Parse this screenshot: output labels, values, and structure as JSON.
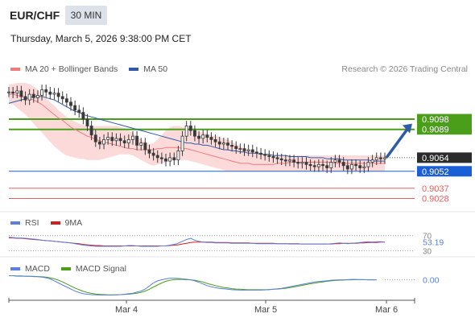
{
  "header": {
    "symbol": "EUR/CHF",
    "timeframe": "30 MIN",
    "timestamp": "Thursday, March 5, 2026 9:38:00 PM CET"
  },
  "legend": {
    "ma20_label": "MA 20 + Bollinger Bands",
    "ma50_label": "MA 50",
    "copyright": "Research © 2026 Trading Central",
    "rsi_label": "RSI",
    "rsi_ma_label": "9MA",
    "macd_label": "MACD",
    "macd_signal_label": "MACD Signal"
  },
  "colors": {
    "ma20": "#f07b7b",
    "ma50": "#2e5aa8",
    "bollinger_fill": "#fbd3d3",
    "resistance": "#4a9e1a",
    "pivot": "#1a5fd6",
    "support": "#e06060",
    "price_box": "#2b2b2b",
    "rsi": "#5b7fe0",
    "rsi_ma": "#d21e1e",
    "macd": "#5b7fe0",
    "macd_signal": "#4a9e1a",
    "arrow": "#2e5aa8"
  },
  "chart_data": [
    {
      "type": "candlestick",
      "title": "",
      "x_ticks": [
        "Mar 4",
        "Mar 5",
        "Mar 6"
      ],
      "ylim": [
        0.9017,
        0.9135
      ],
      "last_price": "0.9064",
      "levels": [
        {
          "value": "0.9098",
          "kind": "resistance"
        },
        {
          "value": "0.9089",
          "kind": "resistance"
        },
        {
          "value": "0.9052",
          "kind": "pivot"
        },
        {
          "value": "0.9037",
          "kind": "support"
        },
        {
          "value": "0.9028",
          "kind": "support"
        }
      ],
      "close": [
        0.9122,
        0.9121,
        0.9123,
        0.9118,
        0.9115,
        0.912,
        0.9117,
        0.9119,
        0.9124,
        0.9122,
        0.912,
        0.9121,
        0.9118,
        0.9116,
        0.9113,
        0.911,
        0.9106,
        0.9104,
        0.9098,
        0.9092,
        0.9084,
        0.9078,
        0.9076,
        0.908,
        0.9082,
        0.9079,
        0.9081,
        0.9079,
        0.9077,
        0.908,
        0.9083,
        0.9075,
        0.9077,
        0.9071,
        0.9068,
        0.9066,
        0.9064,
        0.9063,
        0.9061,
        0.9064,
        0.9062,
        0.907,
        0.9083,
        0.9092,
        0.9088,
        0.9083,
        0.9081,
        0.9084,
        0.9082,
        0.908,
        0.9078,
        0.9076,
        0.9077,
        0.9075,
        0.9074,
        0.9072,
        0.9072,
        0.907,
        0.9071,
        0.9069,
        0.9068,
        0.9067,
        0.9066,
        0.9065,
        0.9064,
        0.9063,
        0.9062,
        0.9061,
        0.9062,
        0.906,
        0.9059,
        0.906,
        0.9058,
        0.9057,
        0.9056,
        0.9058,
        0.9057,
        0.9055,
        0.906,
        0.9062,
        0.906,
        0.9057,
        0.9054,
        0.9058,
        0.9057,
        0.9055,
        0.9056,
        0.906,
        0.9062,
        0.9064,
        0.9063,
        0.9064
      ],
      "ma20": [
        0.912,
        0.912,
        0.9119,
        0.9118,
        0.9117,
        0.9116,
        0.9115,
        0.9113,
        0.9111,
        0.9108,
        0.9105,
        0.9102,
        0.9099,
        0.9097,
        0.9094,
        0.9091,
        0.9089,
        0.9087,
        0.9085,
        0.9083,
        0.9082,
        0.908,
        0.9079,
        0.9078,
        0.9077,
        0.9076,
        0.9075,
        0.9074,
        0.9073,
        0.9072,
        0.9072,
        0.9071,
        0.9071,
        0.9071,
        0.9071,
        0.9071,
        0.9072,
        0.9072,
        0.9073,
        0.9073,
        0.9073,
        0.9073,
        0.9072,
        0.9072,
        0.9071,
        0.907,
        0.9069,
        0.9068,
        0.9067,
        0.9066,
        0.9065,
        0.9064,
        0.9063,
        0.9062,
        0.9061,
        0.906,
        0.9059,
        0.9059,
        0.9059,
        0.9058,
        0.9058,
        0.9058,
        0.9058,
        0.9058,
        0.9058,
        0.9059,
        0.9059,
        0.9059,
        0.906,
        0.906,
        0.906,
        0.906,
        0.906,
        0.906,
        0.906,
        0.906,
        0.906,
        0.906,
        0.906,
        0.9059,
        0.9059,
        0.9059,
        0.9059,
        0.9059,
        0.9059,
        0.9059,
        0.9059,
        0.9059,
        0.9059,
        0.9059,
        0.9059,
        0.9059
      ],
      "bb_upper": [
        0.9129,
        0.9129,
        0.913,
        0.913,
        0.913,
        0.9129,
        0.9127,
        0.9124,
        0.9121,
        0.9117,
        0.9113,
        0.911,
        0.9106,
        0.9103,
        0.91,
        0.9098,
        0.9096,
        0.9094,
        0.9093,
        0.9092,
        0.9092,
        0.9092,
        0.9092,
        0.9092,
        0.9092,
        0.9092,
        0.9092,
        0.9091,
        0.909,
        0.9088,
        0.9086,
        0.9083,
        0.908,
        0.9078,
        0.9076,
        0.9077,
        0.908,
        0.9084,
        0.9088,
        0.9091,
        0.9092,
        0.9092,
        0.9091,
        0.909,
        0.9089,
        0.9088,
        0.9087,
        0.9086,
        0.9085,
        0.9084,
        0.9083,
        0.9082,
        0.9081,
        0.908,
        0.9078,
        0.9076,
        0.9074,
        0.9072,
        0.9071,
        0.907,
        0.9069,
        0.9068,
        0.9067,
        0.9066,
        0.9066,
        0.9066,
        0.9066,
        0.9066,
        0.9066,
        0.9066,
        0.9066,
        0.9066,
        0.9066,
        0.9066,
        0.9066,
        0.9066,
        0.9066,
        0.9066,
        0.9066,
        0.9066,
        0.9066,
        0.9066,
        0.9066,
        0.9066,
        0.9066,
        0.9066,
        0.9066,
        0.9066,
        0.9066,
        0.9066,
        0.9066,
        0.9066
      ],
      "bb_lower": [
        0.9112,
        0.9111,
        0.9108,
        0.9105,
        0.9102,
        0.9098,
        0.9094,
        0.909,
        0.9086,
        0.9082,
        0.9078,
        0.9074,
        0.9071,
        0.9068,
        0.9066,
        0.9065,
        0.9064,
        0.9063,
        0.9063,
        0.9062,
        0.9062,
        0.9062,
        0.9062,
        0.9063,
        0.9064,
        0.9065,
        0.9066,
        0.9067,
        0.9067,
        0.9067,
        0.9066,
        0.9064,
        0.9062,
        0.906,
        0.9058,
        0.9057,
        0.9058,
        0.9059,
        0.906,
        0.9061,
        0.9062,
        0.9062,
        0.9062,
        0.9062,
        0.9061,
        0.906,
        0.9059,
        0.9058,
        0.9057,
        0.9056,
        0.9055,
        0.9054,
        0.9053,
        0.9052,
        0.9052,
        0.9052,
        0.9052,
        0.9052,
        0.9052,
        0.9052,
        0.9052,
        0.9052,
        0.9052,
        0.9052,
        0.9052,
        0.9052,
        0.9052,
        0.9052,
        0.9052,
        0.9052,
        0.9052,
        0.9052,
        0.9052,
        0.9052,
        0.9052,
        0.9052,
        0.9052,
        0.9052,
        0.9052,
        0.9052,
        0.9052,
        0.9052,
        0.9052,
        0.9052,
        0.9052,
        0.9052,
        0.9052,
        0.9052,
        0.9052,
        0.9052,
        0.9052,
        0.9052
      ],
      "ma50": [
        0.9112,
        0.9113,
        0.9114,
        0.9115,
        0.9116,
        0.9117,
        0.9118,
        0.9118,
        0.9118,
        0.9117,
        0.9116,
        0.9115,
        0.9113,
        0.9111,
        0.9109,
        0.9107,
        0.9105,
        0.9104,
        0.9102,
        0.9101,
        0.91,
        0.9099,
        0.9098,
        0.9097,
        0.9096,
        0.9095,
        0.9094,
        0.9093,
        0.9092,
        0.9091,
        0.909,
        0.9089,
        0.9088,
        0.9087,
        0.9086,
        0.9085,
        0.9084,
        0.9083,
        0.9082,
        0.9081,
        0.908,
        0.9079,
        0.9078,
        0.9077,
        0.9077,
        0.9076,
        0.9076,
        0.9075,
        0.9075,
        0.9074,
        0.9073,
        0.9072,
        0.9071,
        0.9071,
        0.907,
        0.907,
        0.9069,
        0.9069,
        0.9068,
        0.9068,
        0.9068,
        0.9067,
        0.9067,
        0.9067,
        0.9066,
        0.9066,
        0.9066,
        0.9066,
        0.9065,
        0.9065,
        0.9065,
        0.9065,
        0.9065,
        0.9064,
        0.9064,
        0.9064,
        0.9064,
        0.9063,
        0.9063,
        0.9063,
        0.9063,
        0.9062,
        0.9062,
        0.9062,
        0.9062,
        0.9062,
        0.9062,
        0.9062,
        0.9061,
        0.9061,
        0.9061,
        0.9061
      ]
    },
    {
      "type": "line",
      "title": "",
      "ylim": [
        25,
        80
      ],
      "levels": [
        "70",
        "30"
      ],
      "last_value": "53.19",
      "series": [
        {
          "name": "RSI",
          "values": [
            66,
            65,
            64,
            64,
            63,
            62,
            61,
            60,
            58,
            57,
            56,
            55,
            54,
            53,
            52,
            51,
            49,
            47,
            45,
            44,
            43,
            42,
            42,
            42,
            42,
            42,
            42,
            42,
            43,
            44,
            44,
            43,
            42,
            42,
            42,
            42,
            42,
            43,
            43,
            45,
            47,
            50,
            55,
            60,
            63,
            58,
            55,
            53,
            52,
            52,
            51,
            51,
            51,
            51,
            50,
            50,
            50,
            50,
            50,
            50,
            49,
            49,
            49,
            49,
            49,
            49,
            49,
            49,
            48,
            48,
            48,
            48,
            48,
            48,
            48,
            48,
            48,
            48,
            49,
            50,
            51,
            50,
            49,
            50,
            51,
            52,
            53,
            54,
            53,
            54,
            54,
            53
          ]
        },
        {
          "name": "9MA",
          "values": [
            64,
            64,
            63,
            63,
            62,
            61,
            60,
            59,
            58,
            57,
            56,
            55,
            54,
            53,
            52,
            51,
            50,
            49,
            47,
            46,
            45,
            44,
            44,
            43,
            43,
            43,
            43,
            43,
            43,
            43,
            43,
            43,
            43,
            43,
            43,
            43,
            43,
            43,
            43,
            44,
            45,
            46,
            48,
            50,
            52,
            53,
            53,
            53,
            53,
            53,
            52,
            52,
            52,
            52,
            51,
            51,
            51,
            51,
            51,
            50,
            50,
            50,
            50,
            50,
            50,
            49,
            49,
            49,
            49,
            49,
            49,
            48,
            48,
            48,
            48,
            48,
            48,
            48,
            48,
            49,
            49,
            50,
            50,
            50,
            50,
            51,
            51,
            52,
            52,
            52,
            53,
            53
          ]
        }
      ]
    },
    {
      "type": "line",
      "title": "",
      "last_value": "0.00",
      "series": [
        {
          "name": "MACD",
          "values": [
            0.2,
            0.2,
            0.18,
            0.18,
            0.17,
            0.17,
            0.16,
            0.15,
            0.13,
            0.1,
            0.05,
            -0.05,
            -0.15,
            -0.25,
            -0.35,
            -0.45,
            -0.55,
            -0.62,
            -0.68,
            -0.7,
            -0.72,
            -0.73,
            -0.74,
            -0.74,
            -0.74,
            -0.74,
            -0.73,
            -0.72,
            -0.7,
            -0.68,
            -0.65,
            -0.6,
            -0.55,
            -0.45,
            -0.3,
            -0.15,
            -0.05,
            0.0,
            0.05,
            0.08,
            0.08,
            0.07,
            0.05,
            0.03,
            0.0,
            -0.05,
            -0.12,
            -0.2,
            -0.28,
            -0.34,
            -0.38,
            -0.42,
            -0.44,
            -0.46,
            -0.48,
            -0.49,
            -0.5,
            -0.5,
            -0.5,
            -0.5,
            -0.5,
            -0.5,
            -0.49,
            -0.48,
            -0.46,
            -0.44,
            -0.42,
            -0.38,
            -0.34,
            -0.3,
            -0.26,
            -0.22,
            -0.18,
            -0.14,
            -0.1,
            -0.08,
            -0.06,
            -0.04,
            -0.02,
            -0.01,
            0.0,
            0.0,
            0.01,
            0.02,
            0.02,
            0.01,
            0.01,
            0.0,
            0.0,
            0.0
          ]
        },
        {
          "name": "MACD Signal",
          "values": [
            0.2,
            0.2,
            0.19,
            0.19,
            0.18,
            0.17,
            0.17,
            0.16,
            0.15,
            0.13,
            0.1,
            0.05,
            -0.02,
            -0.1,
            -0.2,
            -0.3,
            -0.4,
            -0.48,
            -0.56,
            -0.62,
            -0.66,
            -0.69,
            -0.71,
            -0.72,
            -0.73,
            -0.73,
            -0.73,
            -0.72,
            -0.71,
            -0.7,
            -0.68,
            -0.65,
            -0.61,
            -0.55,
            -0.46,
            -0.35,
            -0.25,
            -0.15,
            -0.07,
            -0.02,
            0.01,
            0.02,
            0.02,
            0.01,
            0.0,
            -0.02,
            -0.06,
            -0.11,
            -0.17,
            -0.23,
            -0.28,
            -0.33,
            -0.37,
            -0.4,
            -0.43,
            -0.45,
            -0.46,
            -0.47,
            -0.48,
            -0.48,
            -0.48,
            -0.48,
            -0.48,
            -0.47,
            -0.46,
            -0.45,
            -0.43,
            -0.41,
            -0.38,
            -0.35,
            -0.31,
            -0.27,
            -0.23,
            -0.19,
            -0.16,
            -0.13,
            -0.1,
            -0.07,
            -0.05,
            -0.03,
            -0.02,
            -0.01,
            0.0,
            0.0,
            0.01,
            0.01,
            0.01,
            0.0,
            0.0,
            0.0
          ]
        }
      ]
    }
  ]
}
